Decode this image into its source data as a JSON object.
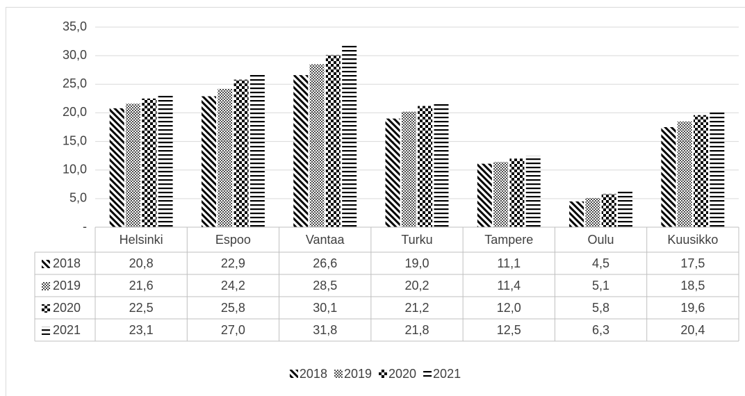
{
  "chart_data": {
    "type": "bar",
    "categories": [
      "Helsinki",
      "Espoo",
      "Vantaa",
      "Turku",
      "Tampere",
      "Oulu",
      "Kuusikko"
    ],
    "series": [
      {
        "name": "2018",
        "color": "#000000",
        "values": [
          20.8,
          22.9,
          26.6,
          19.0,
          11.1,
          4.5,
          17.5
        ],
        "value_labels": [
          "20,8",
          "22,9",
          "26,6",
          "19,0",
          "11,1",
          "4,5",
          "17,5"
        ]
      },
      {
        "name": "2019",
        "color": "#000000",
        "values": [
          21.6,
          24.2,
          28.5,
          20.2,
          11.4,
          5.1,
          18.5
        ],
        "value_labels": [
          "21,6",
          "24,2",
          "28,5",
          "20,2",
          "11,4",
          "5,1",
          "18,5"
        ]
      },
      {
        "name": "2020",
        "color": "#000000",
        "values": [
          22.5,
          25.8,
          30.1,
          21.2,
          12.0,
          5.8,
          19.6
        ],
        "value_labels": [
          "22,5",
          "25,8",
          "30,1",
          "21,2",
          "12,0",
          "5,8",
          "19,6"
        ]
      },
      {
        "name": "2021",
        "color": "#000000",
        "values": [
          23.1,
          27.0,
          31.8,
          21.8,
          12.5,
          6.3,
          20.4
        ],
        "value_labels": [
          "23,1",
          "27,0",
          "31,8",
          "21,8",
          "12,5",
          "6,3",
          "20,4"
        ]
      }
    ],
    "ylim": [
      0,
      35
    ],
    "yticks": [
      {
        "value": 0,
        "label": "-"
      },
      {
        "value": 5,
        "label": "5,0"
      },
      {
        "value": 10,
        "label": "10,0"
      },
      {
        "value": 15,
        "label": "15,0"
      },
      {
        "value": 20,
        "label": "20,0"
      },
      {
        "value": 25,
        "label": "25,0"
      },
      {
        "value": 30,
        "label": "30,0"
      },
      {
        "value": 35,
        "label": "35,0"
      }
    ],
    "grid": true,
    "data_table": true,
    "legend": "bottom"
  }
}
